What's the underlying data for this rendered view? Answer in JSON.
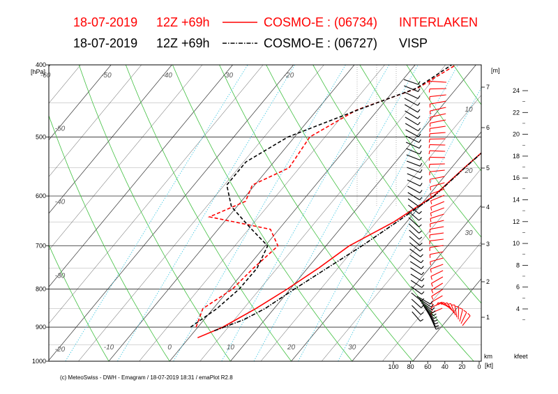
{
  "chart_data": {
    "type": "line",
    "title_line1": {
      "date": "18-07-2019",
      "run": "12Z +69h",
      "model": "COSMO-E : (06734)",
      "station": "INTERLAKEN",
      "color": "#ff0000"
    },
    "title_line2": {
      "date": "18-07-2019",
      "run": "12Z +69h",
      "model": "COSMO-E : (06727)",
      "station": "VISP",
      "color": "#000000"
    },
    "pressure_axis": {
      "unit": "[hPa]",
      "ticks": [
        400,
        500,
        600,
        700,
        800,
        900,
        1000
      ],
      "range": [
        1000,
        400
      ],
      "scale": "log"
    },
    "temperature_axis": {
      "ticks": [
        -10,
        0,
        10,
        20,
        30
      ],
      "range": [
        -18,
        32
      ]
    },
    "isotherm_labels_top": [
      -60,
      -50,
      -40,
      -30,
      -20
    ],
    "isotherm_labels_left": [
      -60,
      -50,
      -40,
      -30,
      -20
    ],
    "mixing_ratio_labels": [
      10,
      20,
      30
    ],
    "height_axis_m": {
      "unit": "[m]",
      "ticks": [
        1,
        2,
        3,
        4,
        5,
        6,
        7
      ]
    },
    "height_axis_km_unit": "km",
    "height_axis_kfeet": {
      "unit": "kfeet",
      "ticks": [
        4,
        6,
        8,
        10,
        12,
        14,
        16,
        18,
        20,
        22,
        24
      ]
    },
    "wind_axis": {
      "unit": "[kt]",
      "ticks": [
        100,
        80,
        60,
        40,
        20,
        0
      ]
    },
    "series": [
      {
        "name": "INTERLAKEN",
        "kind": "temperature",
        "color": "#ff0000",
        "points": [
          [
            1.4,
            930
          ],
          [
            4.1,
            900
          ],
          [
            7.0,
            850
          ],
          [
            9.5,
            800
          ],
          [
            11.8,
            750
          ],
          [
            13.8,
            700
          ],
          [
            17.9,
            650
          ],
          [
            20.9,
            600
          ],
          [
            22.1,
            550
          ],
          [
            23.7,
            500
          ],
          [
            24.4,
            450
          ],
          [
            25.0,
            400
          ]
        ]
      },
      {
        "name": "INTERLAKEN",
        "kind": "dewpoint",
        "color": "#ff0000",
        "points": [
          [
            -0.3,
            900
          ],
          [
            -1.7,
            850
          ],
          [
            0.5,
            800
          ],
          [
            1.1,
            750
          ],
          [
            2.1,
            700
          ],
          [
            -1.4,
            665
          ],
          [
            -13.1,
            640
          ],
          [
            -9.3,
            610
          ],
          [
            -10.4,
            580
          ],
          [
            -6.7,
            550
          ],
          [
            -7.5,
            500
          ],
          [
            -3.5,
            460
          ],
          [
            3.6,
            430
          ],
          [
            6.7,
            400
          ]
        ]
      },
      {
        "name": "VISP",
        "kind": "temperature",
        "color": "#000000",
        "points": [
          [
            3.2,
            910
          ],
          [
            6.5,
            880
          ],
          [
            8.5,
            850
          ],
          [
            10.7,
            800
          ],
          [
            13.2,
            750
          ],
          [
            15.9,
            700
          ],
          [
            18.4,
            650
          ],
          [
            21.0,
            600
          ],
          [
            22.2,
            550
          ],
          [
            23.7,
            500
          ],
          [
            24.4,
            450
          ],
          [
            25.3,
            400
          ]
        ]
      },
      {
        "name": "VISP",
        "kind": "dewpoint",
        "color": "#000000",
        "points": [
          [
            -1.2,
            900
          ],
          [
            0.6,
            850
          ],
          [
            1.6,
            800
          ],
          [
            1.7,
            750
          ],
          [
            0.4,
            700
          ],
          [
            -5.2,
            660
          ],
          [
            -10.9,
            620
          ],
          [
            -14.6,
            580
          ],
          [
            -14.6,
            540
          ],
          [
            -11.1,
            500
          ],
          [
            -3.3,
            460
          ],
          [
            3.4,
            430
          ],
          [
            6.0,
            400
          ]
        ]
      }
    ],
    "wind_profiles": [
      {
        "name": "INTERLAKEN",
        "color": "#ff0000"
      },
      {
        "name": "VISP",
        "color": "#000000"
      }
    ],
    "grid": true
  },
  "credit": "(c) MeteoSwiss - DWH - Emagram / 18-07-2019  18:31 / emaPlot R2.8"
}
